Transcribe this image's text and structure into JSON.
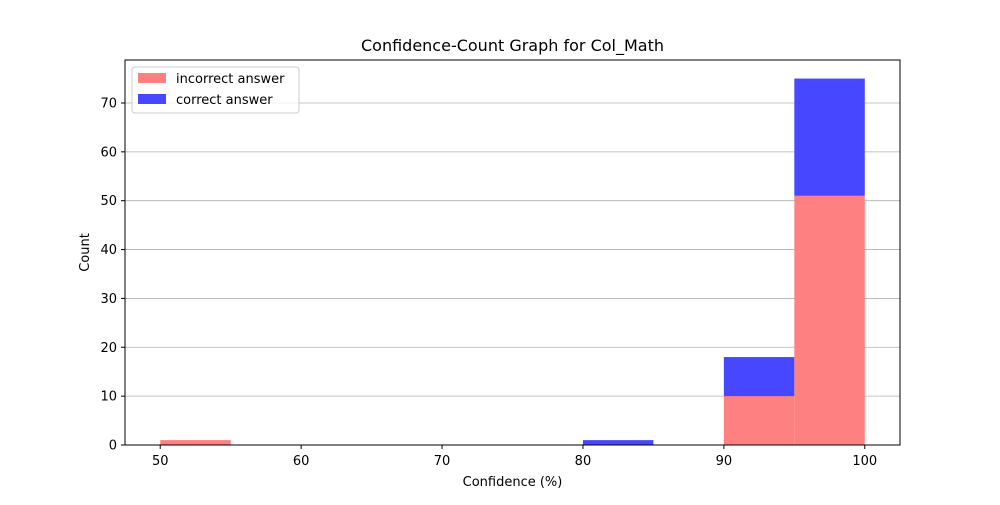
{
  "chart_data": {
    "type": "bar",
    "title": "Confidence-Count Graph for Col_Math",
    "xlabel": "Confidence (%)",
    "ylabel": "Count",
    "xlim": [
      47.5,
      102.5
    ],
    "ylim": [
      0,
      78.8
    ],
    "xticks": [
      50,
      60,
      70,
      80,
      90,
      100
    ],
    "yticks": [
      0,
      10,
      20,
      30,
      40,
      50,
      60,
      70
    ],
    "grid": {
      "y": true,
      "x": false
    },
    "legend_position": "top-left",
    "stacked": true,
    "bin_width": 5,
    "bins": [
      50,
      55,
      60,
      65,
      70,
      75,
      80,
      85,
      90,
      95
    ],
    "series": [
      {
        "name": "incorrect answer",
        "color": "#ff8080",
        "values": [
          1,
          0,
          0,
          0,
          0,
          0,
          0,
          0,
          10,
          51
        ]
      },
      {
        "name": "correct answer",
        "color": "#4747ff",
        "values": [
          0,
          0,
          0,
          0,
          0,
          0,
          1,
          0,
          8,
          24
        ]
      }
    ]
  }
}
